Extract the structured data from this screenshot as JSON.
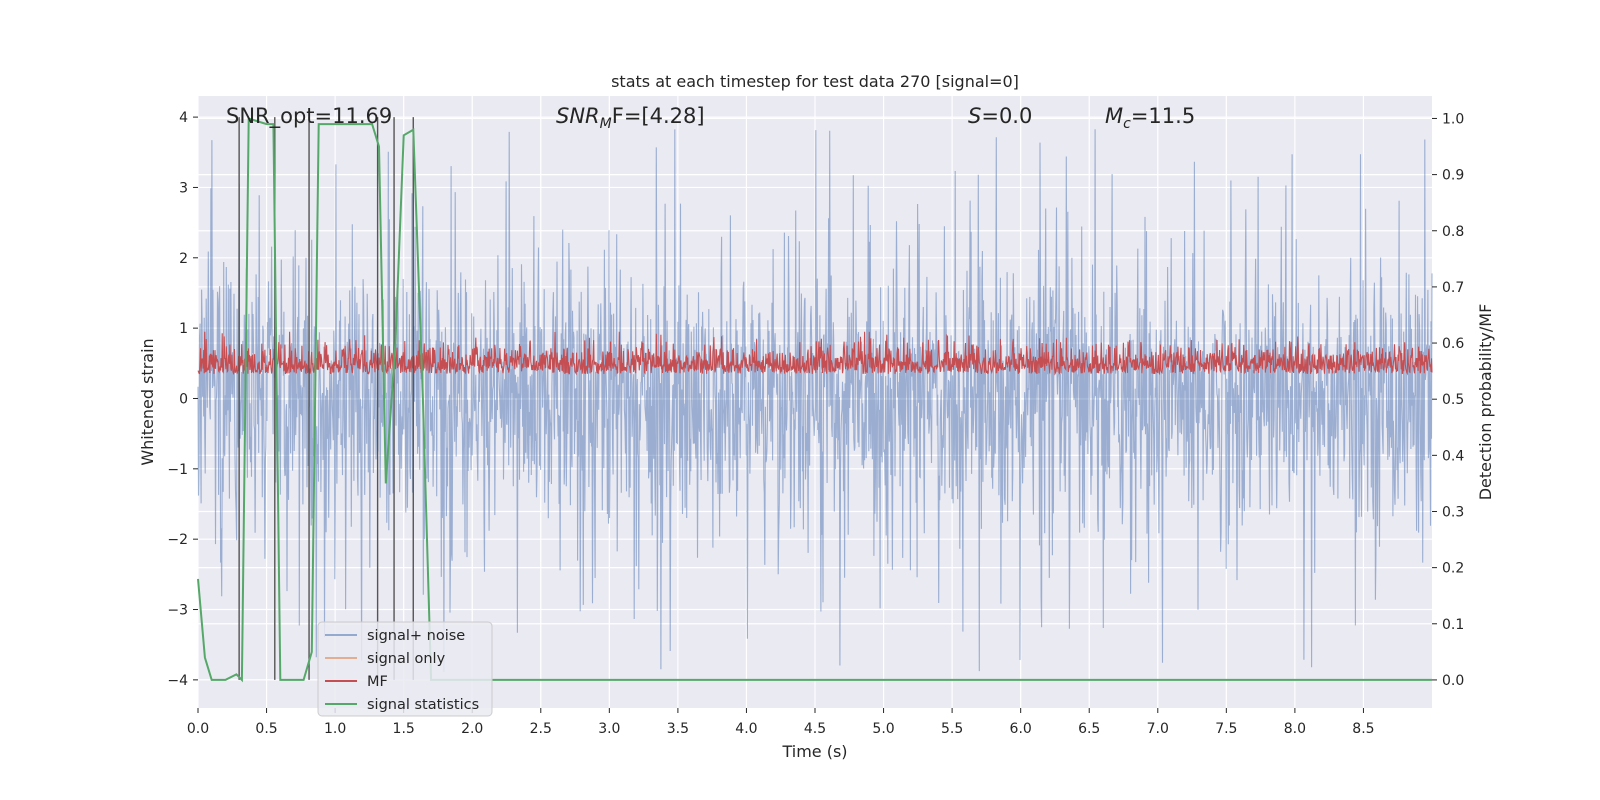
{
  "chart_data": {
    "type": "line",
    "title": "stats at each timestep for test data 270 [signal=0]",
    "xlabel": "Time (s)",
    "ylabel": "Whitened strain",
    "ylabel_right": "Detection probability/MF",
    "xlim": [
      0,
      9
    ],
    "ylim": [
      -4.4,
      4.3
    ],
    "ylim_right": [
      -0.05,
      1.04
    ],
    "x_ticks": [
      0.0,
      0.5,
      1.0,
      1.5,
      2.0,
      2.5,
      3.0,
      3.5,
      4.0,
      4.5,
      5.0,
      5.5,
      6.0,
      6.5,
      7.0,
      7.5,
      8.0,
      8.5
    ],
    "x_tick_labels": [
      "0.0",
      "0.5",
      "1.0",
      "1.5",
      "2.0",
      "2.5",
      "3.0",
      "3.5",
      "4.0",
      "4.5",
      "5.0",
      "5.5",
      "6.0",
      "6.5",
      "7.0",
      "7.5",
      "8.0",
      "8.5"
    ],
    "y_ticks": [
      -4,
      -3,
      -2,
      -1,
      0,
      1,
      2,
      3,
      4
    ],
    "y_tick_labels": [
      "−4",
      "−3",
      "−2",
      "−1",
      "0",
      "1",
      "2",
      "3",
      "4"
    ],
    "y_right_ticks": [
      0.0,
      0.1,
      0.2,
      0.3,
      0.4,
      0.5,
      0.6,
      0.7,
      0.8,
      0.9,
      1.0
    ],
    "y_right_tick_labels": [
      "0.0",
      "0.1",
      "0.2",
      "0.3",
      "0.4",
      "0.5",
      "0.6",
      "0.7",
      "0.8",
      "0.9",
      "1.0"
    ],
    "grid": true,
    "legend_position": "bottom-left",
    "annotations": {
      "snr_opt": "SNR_opt=11.69",
      "snr_mf_italic": "SNR",
      "snr_mf_sub": "M",
      "snr_mf_rest": "F=[4.28]",
      "s_italic": "S",
      "s_rest": "=0.0",
      "mc_italic": "M",
      "mc_sub": "c",
      "mc_rest": "=11.5"
    },
    "series": [
      {
        "name": "signal+ noise",
        "color": "#4c72b0",
        "axis": "left",
        "note": "whitened strain noise, roughly symmetric within about ±2 with peaks to about ±4"
      },
      {
        "name": "signal only",
        "color": "#dd8452",
        "axis": "left",
        "values": []
      },
      {
        "name": "MF",
        "color": "#c44e52",
        "axis": "right",
        "range_right": [
          0.5,
          0.62
        ]
      },
      {
        "name": "signal statistics",
        "color": "#55a868",
        "axis": "right",
        "x": [
          0.0,
          0.05,
          0.1,
          0.2,
          0.28,
          0.32,
          0.37,
          0.5,
          0.55,
          0.6,
          0.63,
          0.7,
          0.77,
          0.83,
          0.88,
          1.0,
          1.1,
          1.2,
          1.27,
          1.32,
          1.37,
          1.44,
          1.5,
          1.57,
          1.64,
          1.7,
          2.0,
          2.5,
          3.0,
          4.0,
          5.0,
          6.0,
          7.0,
          8.0,
          9.0
        ],
        "values": [
          0.18,
          0.04,
          0.0,
          0.0,
          0.01,
          0.0,
          1.0,
          0.99,
          0.99,
          0.0,
          0.0,
          0.0,
          0.0,
          0.05,
          0.99,
          0.99,
          0.99,
          0.99,
          0.99,
          0.95,
          0.35,
          0.6,
          0.97,
          0.98,
          0.5,
          0.0,
          0.0,
          0.0,
          0.0,
          0.0,
          0.0,
          0.0,
          0.0,
          0.0,
          0.0
        ]
      }
    ],
    "vertical_markers_x": [
      0.3,
      0.56,
      0.81,
      1.31,
      1.43,
      1.57
    ],
    "colors": {
      "plot_bg": "#eaeaf2",
      "grid": "#ffffff",
      "marker_line": "#555555"
    }
  }
}
